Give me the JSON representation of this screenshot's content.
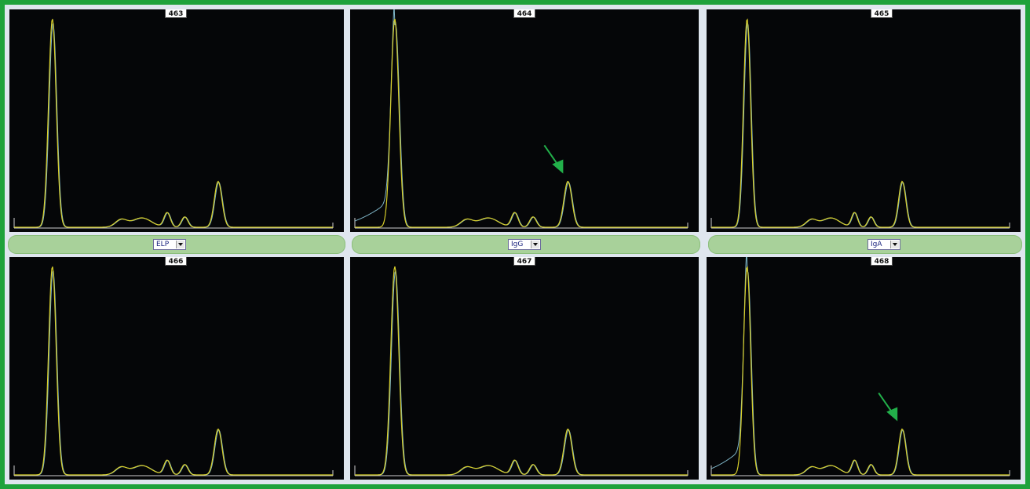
{
  "panels": [
    {
      "id": "463",
      "label": "463",
      "arrow": false,
      "hump": false
    },
    {
      "id": "464",
      "label": "464",
      "arrow": true,
      "hump": true
    },
    {
      "id": "465",
      "label": "465",
      "arrow": false,
      "hump": false
    },
    {
      "id": "466",
      "label": "466",
      "arrow": false,
      "hump": false
    },
    {
      "id": "467",
      "label": "467",
      "arrow": false,
      "hump": false
    },
    {
      "id": "468",
      "label": "468",
      "arrow": true,
      "hump": true
    }
  ],
  "selectors": [
    {
      "value": "ELP"
    },
    {
      "value": "IgG"
    },
    {
      "value": "IgA"
    }
  ],
  "colors": {
    "frame": "#1fa23b",
    "panel_bg": "#050608",
    "trace_primary": "#d8cf2a",
    "trace_secondary": "#7fb6c8",
    "arrow": "#22b04a",
    "bar": "#a8d19a"
  }
}
